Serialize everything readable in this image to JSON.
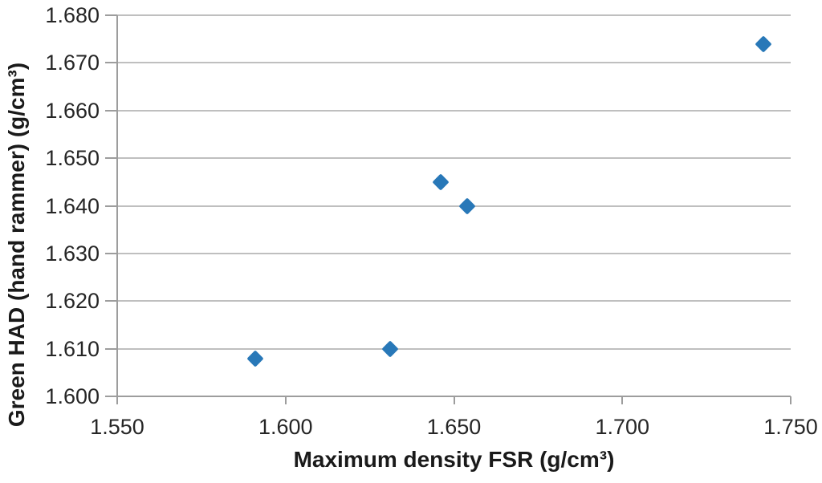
{
  "chart_data": {
    "type": "scatter",
    "title": "",
    "xlabel": "Maximum density FSR (g/cm³)",
    "ylabel": "Green HAD (hand rammer) (g/cm³)",
    "xlim": [
      1.55,
      1.75
    ],
    "ylim": [
      1.6,
      1.68
    ],
    "x_tick_labels": [
      "1.550",
      "1.600",
      "1.650",
      "1.700",
      "1.750"
    ],
    "y_tick_labels": [
      "1.600",
      "1.610",
      "1.620",
      "1.630",
      "1.640",
      "1.650",
      "1.660",
      "1.670",
      "1.680"
    ],
    "grid": "horizontal-only",
    "legend": "none",
    "series": [
      {
        "name": "series-1",
        "marker": "diamond",
        "color": "#2878B8",
        "points": [
          [
            1.591,
            1.608
          ],
          [
            1.631,
            1.61
          ],
          [
            1.646,
            1.645
          ],
          [
            1.654,
            1.64
          ],
          [
            1.742,
            1.674
          ]
        ]
      }
    ]
  },
  "colors": {
    "marker": "#2878B8",
    "gridline": "#BFBFBF",
    "axis": "#9D9D9D",
    "tick_text": "#262626",
    "title_text": "#1A1A1A",
    "background": "#FFFFFF"
  }
}
